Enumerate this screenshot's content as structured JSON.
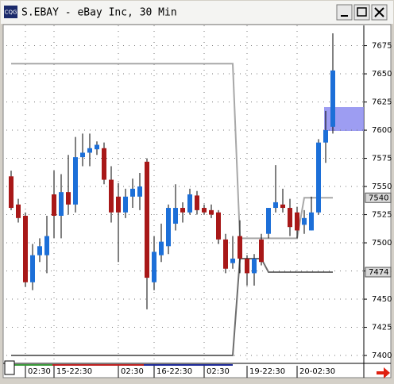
{
  "window": {
    "title": "S.EBAY - eBay Inc, 30 Min",
    "icon": "CQG"
  },
  "chart_data": {
    "type": "candlestick",
    "categories": [
      null,
      null,
      "02:30",
      null,
      null,
      null,
      "15-22:30",
      null,
      null,
      null,
      null,
      null,
      null,
      null,
      null,
      "02:30",
      null,
      null,
      null,
      null,
      "16-22:30",
      null,
      null,
      null,
      null,
      null,
      null,
      "02:30",
      null,
      null,
      null,
      null,
      null,
      "19-22:30",
      null,
      null,
      null,
      null,
      null,
      null,
      "20-02:30",
      null,
      null,
      null,
      null,
      null
    ],
    "open": [
      7559,
      7534,
      7524,
      7465,
      7489,
      7489,
      7543,
      7524,
      7545,
      7534,
      7576,
      7580,
      7583,
      7584,
      7556,
      7541,
      7527,
      7541,
      7541,
      7572,
      7465,
      7489,
      7497,
      7517,
      7531,
      7527,
      7542,
      7531,
      7529,
      7527,
      7503,
      7482,
      7506,
      7486,
      7473,
      7503,
      7508,
      7531,
      7534,
      7531,
      7527,
      7516,
      7511,
      7527,
      7589,
      7603
    ],
    "high": [
      7564,
      7539,
      7527,
      7499,
      7504,
      7524,
      7564,
      7561,
      7578,
      7594,
      7597,
      7597,
      7590,
      7589,
      7568,
      7553,
      7548,
      7557,
      7562,
      7575,
      7506,
      7517,
      7534,
      7552,
      7536,
      7548,
      7546,
      7534,
      7534,
      7529,
      7508,
      7506,
      7520,
      7489,
      7490,
      7508,
      7531,
      7569,
      7548,
      7539,
      7532,
      7529,
      7541,
      7592,
      7617,
      7686
    ],
    "low": [
      7529,
      7518,
      7461,
      7458,
      7483,
      7473,
      7504,
      7504,
      7525,
      7527,
      7568,
      7568,
      7578,
      7552,
      7518,
      7483,
      7522,
      7531,
      7529,
      7441,
      7458,
      7483,
      7490,
      7511,
      7518,
      7525,
      7525,
      7525,
      7522,
      7499,
      7473,
      7477,
      7473,
      7462,
      7462,
      7480,
      7504,
      7527,
      7527,
      7506,
      7504,
      7508,
      7511,
      7525,
      7571,
      7597
    ],
    "close": [
      7531,
      7522,
      7465,
      7489,
      7497,
      7506,
      7524,
      7545,
      7534,
      7576,
      7580,
      7584,
      7587,
      7556,
      7527,
      7527,
      7541,
      7548,
      7550,
      7469,
      7492,
      7501,
      7531,
      7531,
      7527,
      7543,
      7529,
      7527,
      7525,
      7503,
      7477,
      7486,
      7486,
      7473,
      7486,
      7483,
      7531,
      7536,
      7531,
      7514,
      7511,
      7522,
      7527,
      7589,
      7600,
      7653
    ],
    "up_color": "#1c6fd8",
    "down_color": "#a81818",
    "lines": [
      {
        "color": "#a8a8a8",
        "values": [
          7659,
          7659,
          7659,
          7659,
          7659,
          7659,
          7659,
          7659,
          7659,
          7659,
          7659,
          7659,
          7659,
          7659,
          7659,
          7659,
          7659,
          7659,
          7659,
          7659,
          7659,
          7659,
          7659,
          7659,
          7659,
          7659,
          7659,
          7659,
          7659,
          7659,
          7659,
          7659,
          7504,
          7504,
          7504,
          7504,
          7504,
          7504,
          7504,
          7504,
          7504,
          7540,
          7540,
          7540,
          7540,
          7540
        ],
        "value_labels": [
          "7540"
        ]
      },
      {
        "color": "#6e6e6e",
        "values": [
          7400,
          7400,
          7400,
          7400,
          7400,
          7400,
          7400,
          7400,
          7400,
          7400,
          7400,
          7400,
          7400,
          7400,
          7400,
          7400,
          7400,
          7400,
          7400,
          7400,
          7400,
          7400,
          7400,
          7400,
          7400,
          7400,
          7400,
          7400,
          7400,
          7400,
          7400,
          7400,
          7486,
          7486,
          7486,
          7486,
          7474,
          7474,
          7474,
          7474,
          7474,
          7474,
          7474,
          7474,
          7474,
          7474
        ],
        "value_labels": [
          "7474"
        ]
      }
    ],
    "ylim": [
      7393,
      7693
    ],
    "yticks": [
      7400,
      7425,
      7450,
      7475,
      7500,
      7525,
      7550,
      7575,
      7600,
      7625,
      7650,
      7675
    ],
    "grid": true
  }
}
